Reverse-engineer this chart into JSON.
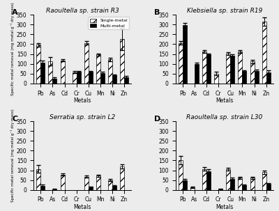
{
  "panels": [
    {
      "label": "A",
      "title": "Raoultella sp. strain R3",
      "metals": [
        "Pb",
        "As",
        "Cd",
        "Cr",
        "Cu",
        "Mn",
        "Ni",
        "Zn"
      ],
      "single": [
        197,
        113,
        118,
        57,
        207,
        147,
        122,
        225
      ],
      "multi": [
        105,
        25,
        null,
        58,
        58,
        53,
        42,
        32
      ],
      "single_err": [
        10,
        20,
        5,
        5,
        10,
        5,
        10,
        55
      ],
      "multi_err": [
        10,
        5,
        null,
        5,
        5,
        5,
        5,
        5
      ],
      "show_legend": true
    },
    {
      "label": "B",
      "title": "Klebsiella sp. strain R19",
      "metals": [
        "Pb",
        "As",
        "Cd",
        "Cr",
        "Cu",
        "Mn",
        "Ni",
        "Zn"
      ],
      "single": [
        207,
        null,
        163,
        50,
        152,
        162,
        112,
        315
      ],
      "multi": [
        297,
        100,
        148,
        null,
        143,
        62,
        65,
        57
      ],
      "single_err": [
        10,
        null,
        8,
        8,
        8,
        8,
        8,
        20
      ],
      "multi_err": [
        10,
        5,
        5,
        null,
        5,
        5,
        5,
        10
      ],
      "show_legend": false
    },
    {
      "label": "C",
      "title": "Serratia sp. strain L2",
      "metals": [
        "Pb",
        "As",
        "Cd",
        "Cr",
        "Cu",
        "Mn",
        "Ni",
        "Zn"
      ],
      "single": [
        107,
        null,
        78,
        null,
        67,
        72,
        50,
        120
      ],
      "multi": [
        22,
        3,
        null,
        null,
        15,
        null,
        20,
        null
      ],
      "single_err": [
        20,
        null,
        5,
        null,
        5,
        5,
        5,
        10
      ],
      "multi_err": [
        5,
        2,
        null,
        null,
        3,
        null,
        3,
        null
      ],
      "show_legend": false
    },
    {
      "label": "D",
      "title": "Raoultella sp. strain L30",
      "metals": [
        "Pb",
        "As",
        "Cd",
        "Cr",
        "Cu",
        "Mn",
        "Ni",
        "Zn"
      ],
      "single": [
        152,
        12,
        107,
        null,
        105,
        62,
        62,
        90
      ],
      "multi": [
        48,
        null,
        96,
        5,
        57,
        25,
        null,
        30
      ],
      "single_err": [
        20,
        3,
        8,
        null,
        8,
        5,
        5,
        8
      ],
      "multi_err": [
        8,
        null,
        8,
        2,
        5,
        3,
        null,
        5
      ],
      "show_legend": false
    }
  ],
  "ylabel": "Specific metal removal (mg metal g⁻¹ dry mass)",
  "xlabel": "Metals",
  "bar_width": 0.35,
  "background_color": "#ececec"
}
